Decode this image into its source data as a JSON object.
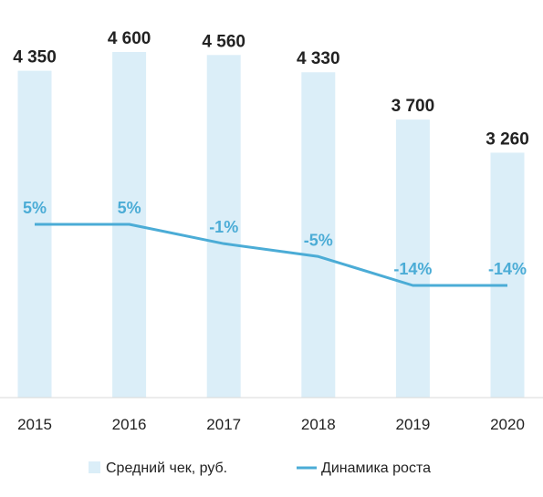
{
  "chart_data": {
    "type": "bar",
    "categories": [
      "2015",
      "2016",
      "2017",
      "2018",
      "2019",
      "2020"
    ],
    "series": [
      {
        "name": "Средний чек, руб.",
        "type": "bar",
        "values": [
          4350,
          4600,
          4560,
          4330,
          3700,
          3260
        ],
        "labels": [
          "4 350",
          "4 600",
          "4 560",
          "4 330",
          "3 700",
          "3 260"
        ],
        "color": "#dbeef8"
      },
      {
        "name": "Динамика роста",
        "type": "line",
        "values": [
          5,
          5,
          -1,
          -5,
          -14,
          -14
        ],
        "labels": [
          "5%",
          "5%",
          "-1%",
          "-5%",
          "-14%",
          "-14%"
        ],
        "color": "#4bacd6"
      }
    ],
    "xlabel": "",
    "ylabel": "",
    "legend_position": "bottom",
    "grid": false
  }
}
